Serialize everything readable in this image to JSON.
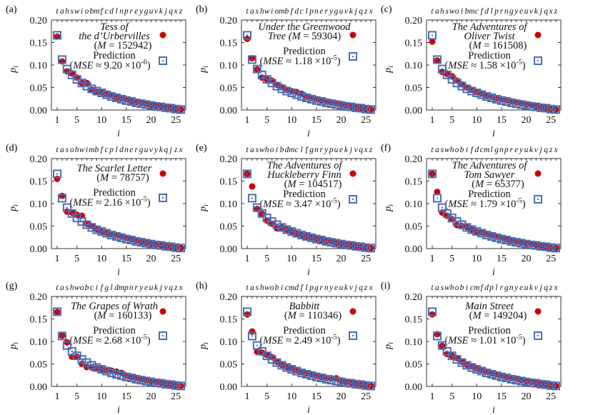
{
  "chart_data": [
    {
      "panel": "(a)",
      "type": "scatter",
      "letters": "tahswiobmfcdlnpreyguvkjqxz",
      "title_lines": [
        "Tess of",
        "the d’Urbervilles"
      ],
      "m_inline": false,
      "M": "152942",
      "mse_mantissa": "9.20",
      "mse_exponent": "-6",
      "observed": [
        0.163,
        0.108,
        0.086,
        0.081,
        0.072,
        0.06,
        0.06,
        0.045,
        0.04,
        0.039,
        0.036,
        0.033,
        0.028,
        0.026,
        0.024,
        0.02,
        0.018,
        0.016,
        0.014,
        0.011,
        0.009,
        0.008,
        0.006,
        0.005,
        0.002,
        0.001
      ]
    },
    {
      "panel": "(b)",
      "type": "scatter",
      "letters": "tashwiombfdclpneryguvkjqzx",
      "title_lines": [
        "Under the Greenwood",
        "Tree"
      ],
      "m_inline": true,
      "M": "59304",
      "mse_mantissa": "1.18",
      "mse_exponent": "-5",
      "observed": [
        0.158,
        0.115,
        0.09,
        0.072,
        0.068,
        0.065,
        0.056,
        0.051,
        0.045,
        0.042,
        0.04,
        0.036,
        0.03,
        0.027,
        0.024,
        0.021,
        0.019,
        0.017,
        0.015,
        0.013,
        0.01,
        0.008,
        0.006,
        0.004,
        0.002,
        0.001
      ]
    },
    {
      "panel": "(c)",
      "type": "scatter",
      "letters": "tahswoibmcfdlprngyeuvkjqxz",
      "title_lines": [
        "The Adventures of",
        "Oliver Twist"
      ],
      "m_inline": false,
      "M": "161508",
      "mse_mantissa": "1.58",
      "mse_exponent": "-5",
      "observed": [
        0.152,
        0.11,
        0.085,
        0.08,
        0.075,
        0.065,
        0.057,
        0.05,
        0.045,
        0.04,
        0.037,
        0.032,
        0.03,
        0.026,
        0.024,
        0.022,
        0.019,
        0.017,
        0.015,
        0.013,
        0.011,
        0.008,
        0.006,
        0.004,
        0.002,
        0.001
      ]
    },
    {
      "panel": "(d)",
      "type": "scatter",
      "letters": "tasohwimbfcpldnerguvykqjzx",
      "title_lines": [
        "The Scarlet Letter"
      ],
      "m_inline": false,
      "M": "78757",
      "mse_mantissa": "2.16",
      "mse_exponent": "-5",
      "observed": [
        0.155,
        0.117,
        0.082,
        0.08,
        0.075,
        0.073,
        0.055,
        0.05,
        0.043,
        0.038,
        0.035,
        0.032,
        0.03,
        0.027,
        0.024,
        0.021,
        0.018,
        0.015,
        0.013,
        0.011,
        0.009,
        0.007,
        0.005,
        0.004,
        0.002,
        0.001
      ]
    },
    {
      "panel": "(e)",
      "type": "scatter",
      "letters": "taswhoibdmclfgnrypuekjvqxz",
      "title_lines": [
        "The Adventures of",
        "Huckleberry Finn"
      ],
      "m_inline": false,
      "M": "104517",
      "mse_mantissa": "3.47",
      "mse_exponent": "-5",
      "observed": [
        0.166,
        0.138,
        0.088,
        0.077,
        0.062,
        0.055,
        0.045,
        0.047,
        0.042,
        0.038,
        0.033,
        0.03,
        0.027,
        0.025,
        0.022,
        0.019,
        0.017,
        0.016,
        0.013,
        0.011,
        0.009,
        0.007,
        0.005,
        0.003,
        0.002,
        0.001
      ]
    },
    {
      "panel": "(f)",
      "type": "scatter",
      "letters": "taswhobifdcmlgnpreyukvjqzx",
      "title_lines": [
        "The Adventures of",
        "Tom Sawyer"
      ],
      "m_inline": false,
      "M": "65377",
      "mse_mantissa": "1.79",
      "mse_exponent": "-5",
      "observed": [
        0.166,
        0.126,
        0.08,
        0.073,
        0.065,
        0.052,
        0.05,
        0.048,
        0.042,
        0.037,
        0.036,
        0.033,
        0.03,
        0.027,
        0.024,
        0.021,
        0.018,
        0.016,
        0.014,
        0.012,
        0.01,
        0.008,
        0.006,
        0.004,
        0.002,
        0.001
      ]
    },
    {
      "panel": "(g)",
      "type": "scatter",
      "letters": "tashwobcifgldmpnryeukjvqzx",
      "title_lines": [
        "The Grapes of Wrath"
      ],
      "m_inline": false,
      "M": "160133",
      "mse_mantissa": "2.68",
      "mse_exponent": "-5",
      "observed": [
        0.165,
        0.113,
        0.098,
        0.066,
        0.066,
        0.05,
        0.043,
        0.042,
        0.04,
        0.038,
        0.036,
        0.035,
        0.033,
        0.03,
        0.024,
        0.021,
        0.019,
        0.016,
        0.014,
        0.012,
        0.01,
        0.008,
        0.006,
        0.004,
        0.002,
        0.001
      ]
    },
    {
      "panel": "(h)",
      "type": "scatter",
      "letters": "tashwobicmdflpgrnyeukvjqzx",
      "title_lines": [
        "Babbitt"
      ],
      "m_inline": false,
      "M": "110346",
      "mse_mantissa": "2.49",
      "mse_exponent": "-5",
      "observed": [
        0.16,
        0.122,
        0.077,
        0.075,
        0.07,
        0.065,
        0.055,
        0.048,
        0.043,
        0.04,
        0.036,
        0.032,
        0.029,
        0.027,
        0.024,
        0.021,
        0.019,
        0.018,
        0.018,
        0.013,
        0.01,
        0.008,
        0.006,
        0.004,
        0.002,
        0.001
      ]
    },
    {
      "panel": "(i)",
      "type": "scatter",
      "letters": "taswhobicmfdplrgnyeukvjqzx",
      "title_lines": [
        "Main Street"
      ],
      "m_inline": false,
      "M": "149204",
      "mse_mantissa": "1.01",
      "mse_exponent": "-5",
      "observed": [
        0.16,
        0.116,
        0.09,
        0.072,
        0.068,
        0.063,
        0.055,
        0.048,
        0.045,
        0.04,
        0.036,
        0.033,
        0.03,
        0.027,
        0.024,
        0.021,
        0.019,
        0.017,
        0.014,
        0.012,
        0.01,
        0.008,
        0.006,
        0.004,
        0.002,
        0.001
      ]
    }
  ],
  "prediction": [
    0.166,
    0.112,
    0.091,
    0.078,
    0.068,
    0.06,
    0.053,
    0.047,
    0.042,
    0.038,
    0.034,
    0.03,
    0.027,
    0.024,
    0.021,
    0.019,
    0.016,
    0.014,
    0.012,
    0.01,
    0.008,
    0.007,
    0.005,
    0.004,
    0.002,
    0.001
  ],
  "prediction_label": "Prediction",
  "mse_label": "MSE",
  "m_label": "M",
  "xlabel": "i",
  "ylabel": "p",
  "ylabel_sub": "i",
  "xlim": [
    0,
    27
  ],
  "ylim": [
    0,
    0.2
  ],
  "xticks": [
    "1",
    "5",
    "10",
    "15",
    "20",
    "25"
  ],
  "yticks": [
    "0.00",
    "0.05",
    "0.10",
    "0.15",
    "0.20"
  ],
  "colors": {
    "observed": "#cc0000",
    "prediction": "#4a6db5"
  }
}
